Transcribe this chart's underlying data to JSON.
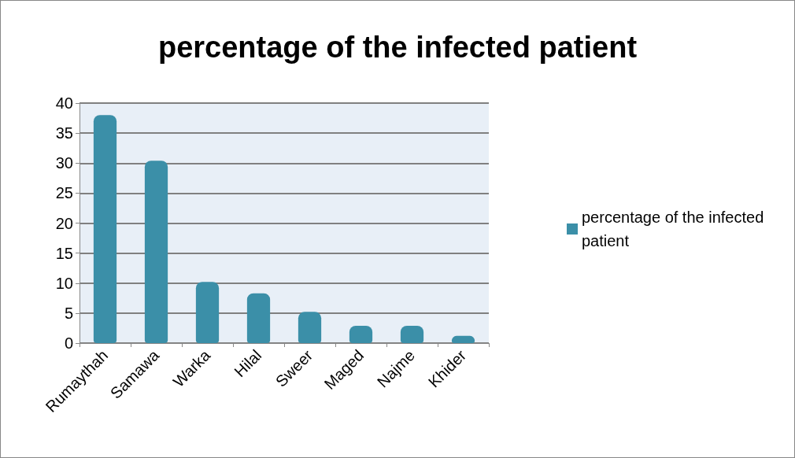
{
  "chart_data": {
    "type": "bar",
    "title": "percentage of the infected patient",
    "categories": [
      "Rumaythah",
      "Samawa",
      "Warka",
      "Hilal",
      "Sweer",
      "Maged",
      "Najme",
      "Khider"
    ],
    "series": [
      {
        "name": "percentage of the infected patient",
        "color": "#3b8fa8",
        "values": [
          38,
          30.4,
          10.2,
          8.3,
          5.2,
          2.9,
          2.9,
          1.2
        ]
      }
    ],
    "ylim": [
      0,
      40
    ],
    "yticks": [
      0,
      5,
      10,
      15,
      20,
      25,
      30,
      35,
      40
    ],
    "grid": "y",
    "legend": "right"
  }
}
